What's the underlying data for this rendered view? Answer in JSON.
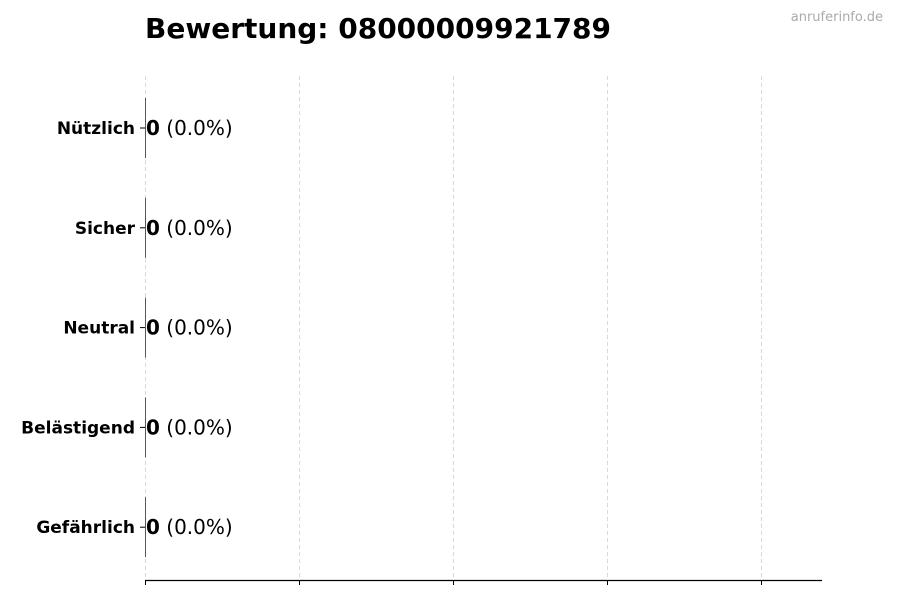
{
  "watermark": "anruferinfo.de",
  "chart_data": {
    "type": "bar",
    "orientation": "horizontal",
    "title": "Bewertung: 08000009921789",
    "categories": [
      "Nützlich",
      "Sicher",
      "Neutral",
      "Belästigend",
      "Gefährlich"
    ],
    "values": [
      0,
      0,
      0,
      0,
      0
    ],
    "labels": [
      {
        "count": "0",
        "pct": "(0.0%)"
      },
      {
        "count": "0",
        "pct": "(0.0%)"
      },
      {
        "count": "0",
        "pct": "(0.0%)"
      },
      {
        "count": "0",
        "pct": "(0.0%)"
      },
      {
        "count": "0",
        "pct": "(0.0%)"
      }
    ],
    "xlabel": "",
    "ylabel": "",
    "grid": "x dashed",
    "xticks_count": 5,
    "colors": {
      "grid": "#d9d9d9",
      "axis": "#000000",
      "watermark": "#aaaaaa"
    }
  }
}
